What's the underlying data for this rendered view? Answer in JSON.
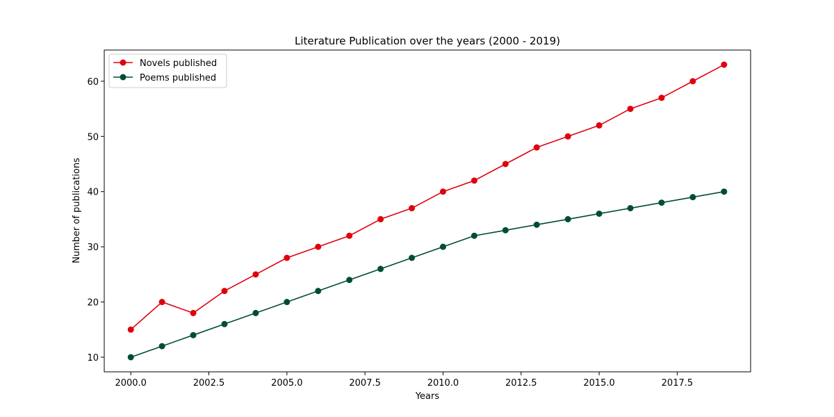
{
  "chart_data": {
    "type": "line",
    "title": "Literature Publication over the years (2000 - 2019)",
    "xlabel": "Years",
    "ylabel": "Number of publications",
    "x": [
      2000,
      2001,
      2002,
      2003,
      2004,
      2005,
      2006,
      2007,
      2008,
      2009,
      2010,
      2011,
      2012,
      2013,
      2014,
      2015,
      2016,
      2017,
      2018,
      2019
    ],
    "xlim": [
      1999.15,
      2019.85
    ],
    "ylim": [
      7.35,
      65.65
    ],
    "xticks": [
      2000.0,
      2002.5,
      2005.0,
      2007.5,
      2010.0,
      2012.5,
      2015.0,
      2017.5
    ],
    "xtick_labels": [
      "2000.0",
      "2002.5",
      "2005.0",
      "2007.5",
      "2010.0",
      "2012.5",
      "2015.0",
      "2017.5"
    ],
    "yticks": [
      10,
      20,
      30,
      40,
      50,
      60
    ],
    "ytick_labels": [
      "10",
      "20",
      "30",
      "40",
      "50",
      "60"
    ],
    "grid": false,
    "legend_position": "top-left",
    "series": [
      {
        "name": "Novels published",
        "color": "#e0000d",
        "marker": "circle",
        "values": [
          15,
          20,
          18,
          22,
          25,
          28,
          30,
          32,
          35,
          37,
          40,
          42,
          45,
          48,
          50,
          52,
          55,
          57,
          60,
          63
        ]
      },
      {
        "name": "Poems published",
        "color": "#004d33",
        "marker": "circle",
        "values": [
          10,
          12,
          14,
          16,
          18,
          20,
          22,
          24,
          26,
          28,
          30,
          32,
          33,
          34,
          35,
          36,
          37,
          38,
          39,
          40
        ]
      }
    ]
  }
}
